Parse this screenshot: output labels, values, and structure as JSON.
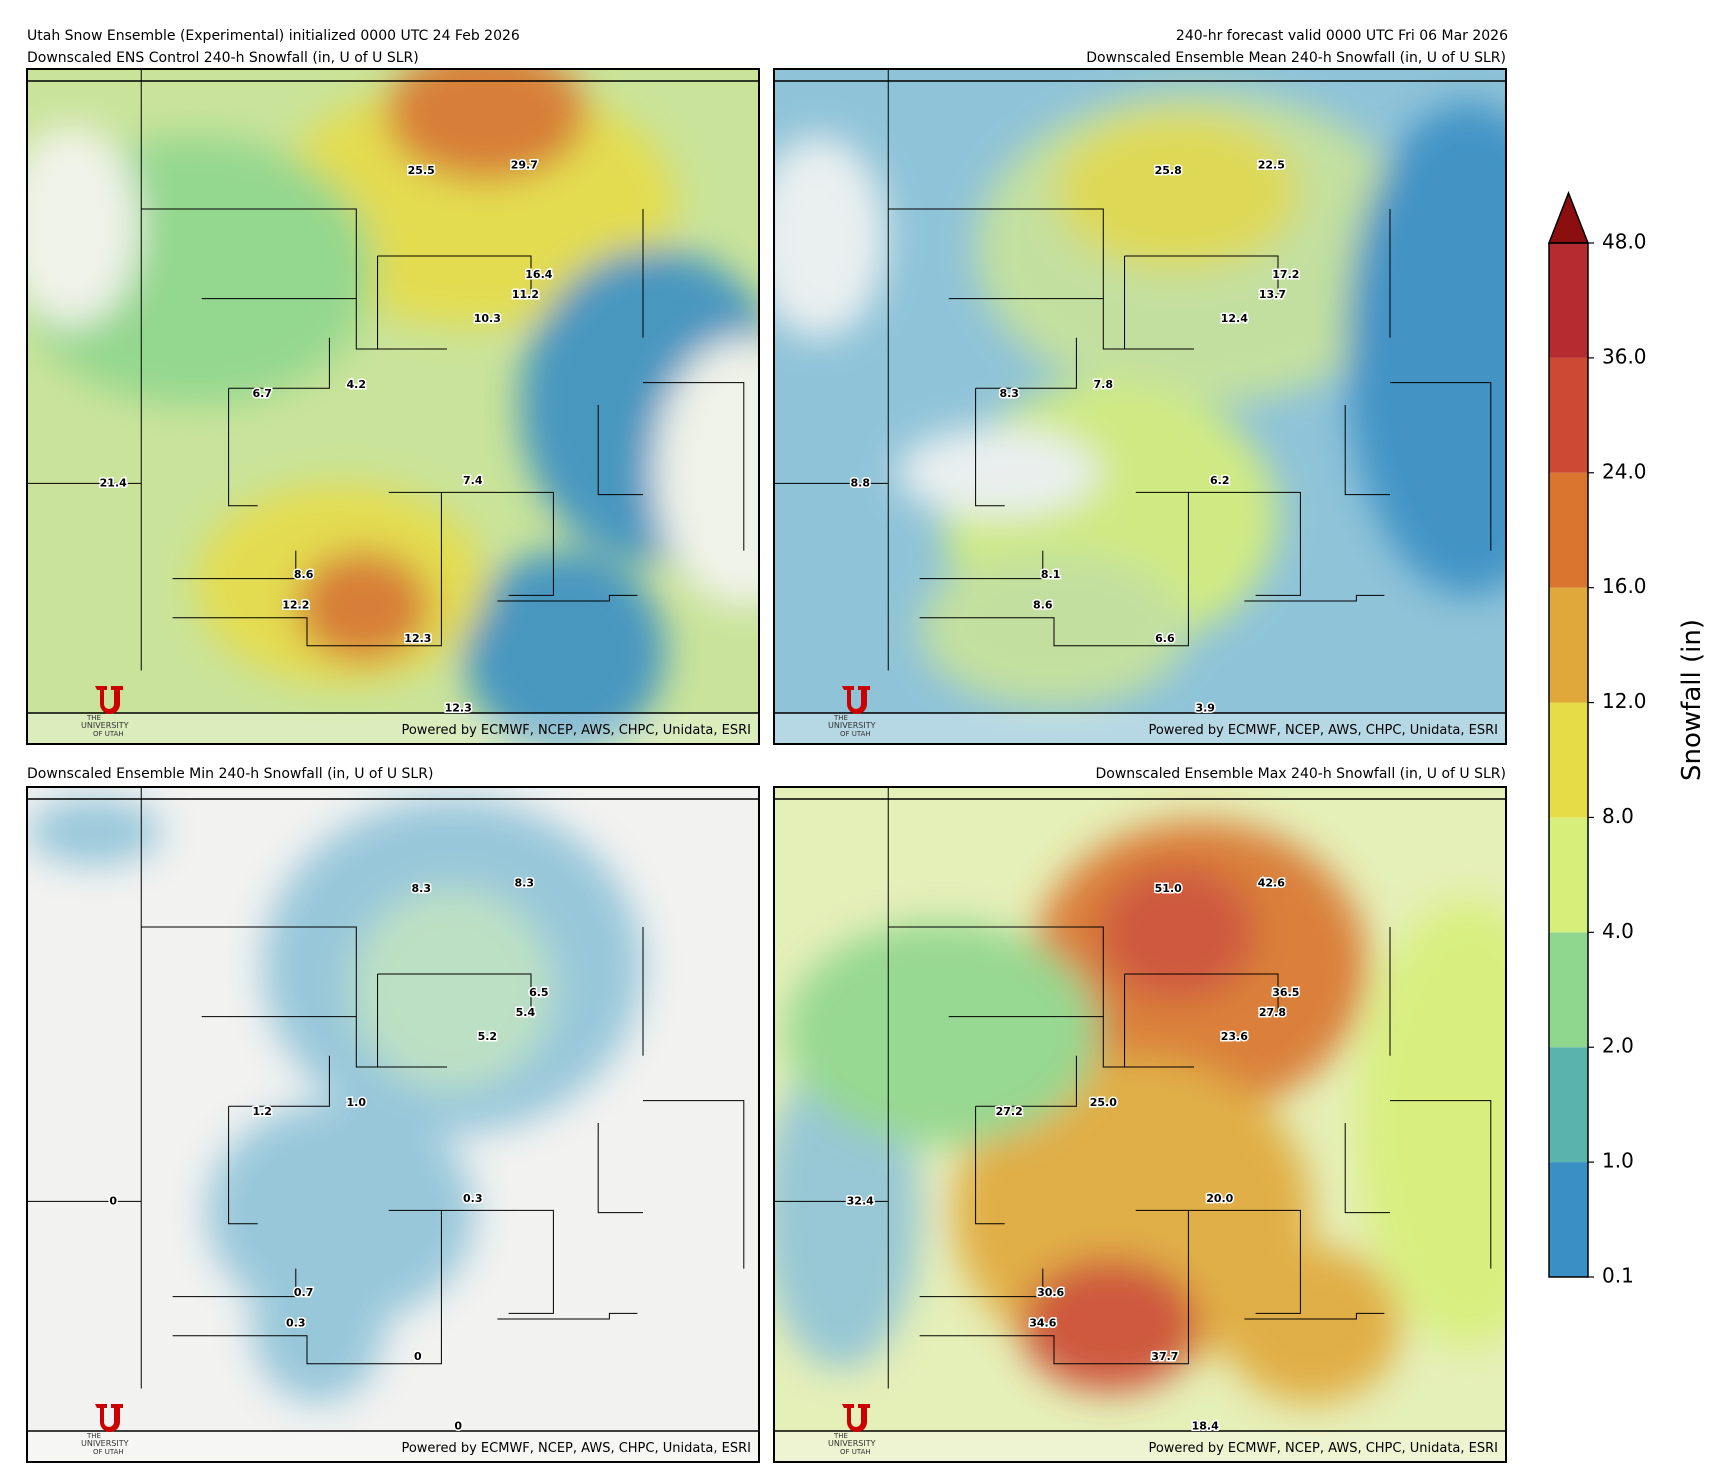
{
  "header": {
    "init": "Utah Snow Ensemble (Experimental) initialized 0000 UTC 24 Feb 2026",
    "valid": "240-hr forecast valid 0000 UTC Fri 06 Mar 2026"
  },
  "panels": [
    {
      "title": "Downscaled ENS Control 240-h Snowfall (in, U of U SLR)",
      "points": [
        "25.5",
        "29.7",
        "16.4",
        "11.2",
        "10.3",
        "6.7",
        "4.2",
        "21.4",
        "7.4",
        "8.6",
        "12.2",
        "12.3",
        "12.3"
      ]
    },
    {
      "title": "Downscaled Ensemble Mean 240-h Snowfall (in, U of U SLR)",
      "points": [
        "25.8",
        "22.5",
        "17.2",
        "13.7",
        "12.4",
        "8.3",
        "7.8",
        "8.8",
        "6.2",
        "8.1",
        "8.6",
        "6.6",
        "3.9"
      ]
    },
    {
      "title": "Downscaled Ensemble Min 240-h Snowfall (in, U of U SLR)",
      "points": [
        "8.3",
        "8.3",
        "6.5",
        "5.4",
        "5.2",
        "1.2",
        "1.0",
        "0",
        "0.3",
        "0.7",
        "0.3",
        "0",
        "0"
      ]
    },
    {
      "title": "Downscaled Ensemble Max 240-h Snowfall (in, U of U SLR)",
      "points": [
        "51.0",
        "42.6",
        "36.5",
        "27.8",
        "23.6",
        "27.2",
        "25.0",
        "32.4",
        "20.0",
        "30.6",
        "34.6",
        "37.7",
        "18.4"
      ]
    }
  ],
  "footer": "Powered by ECMWF, NCEP, AWS, CHPC, Unidata, ESRI",
  "logo": {
    "line1": "THE",
    "line2": "UNIVERSITY",
    "line3": "OF UTAH"
  },
  "colorbar": {
    "label": "Snowfall (in)",
    "bounds": [
      {
        "value": 0.1,
        "label": "0.1"
      },
      {
        "value": 1,
        "label": "1.0"
      },
      {
        "value": 2,
        "label": "2.0"
      },
      {
        "value": 4,
        "label": "4.0"
      },
      {
        "value": 8,
        "label": "8.0"
      },
      {
        "value": 12,
        "label": "12.0"
      },
      {
        "value": 16,
        "label": "16.0"
      },
      {
        "value": 24,
        "label": "24.0"
      },
      {
        "value": 36,
        "label": "36.0"
      },
      {
        "value": 48,
        "label": "48.0"
      }
    ],
    "colors": [
      "#3a8fc4",
      "#5bb3ad",
      "#8fd68e",
      "#d7ef7a",
      "#e6dc48",
      "#e0a83a",
      "#d9752f",
      "#cc4a33",
      "#b52b30"
    ],
    "extend_color": "#8b0e0e"
  }
}
